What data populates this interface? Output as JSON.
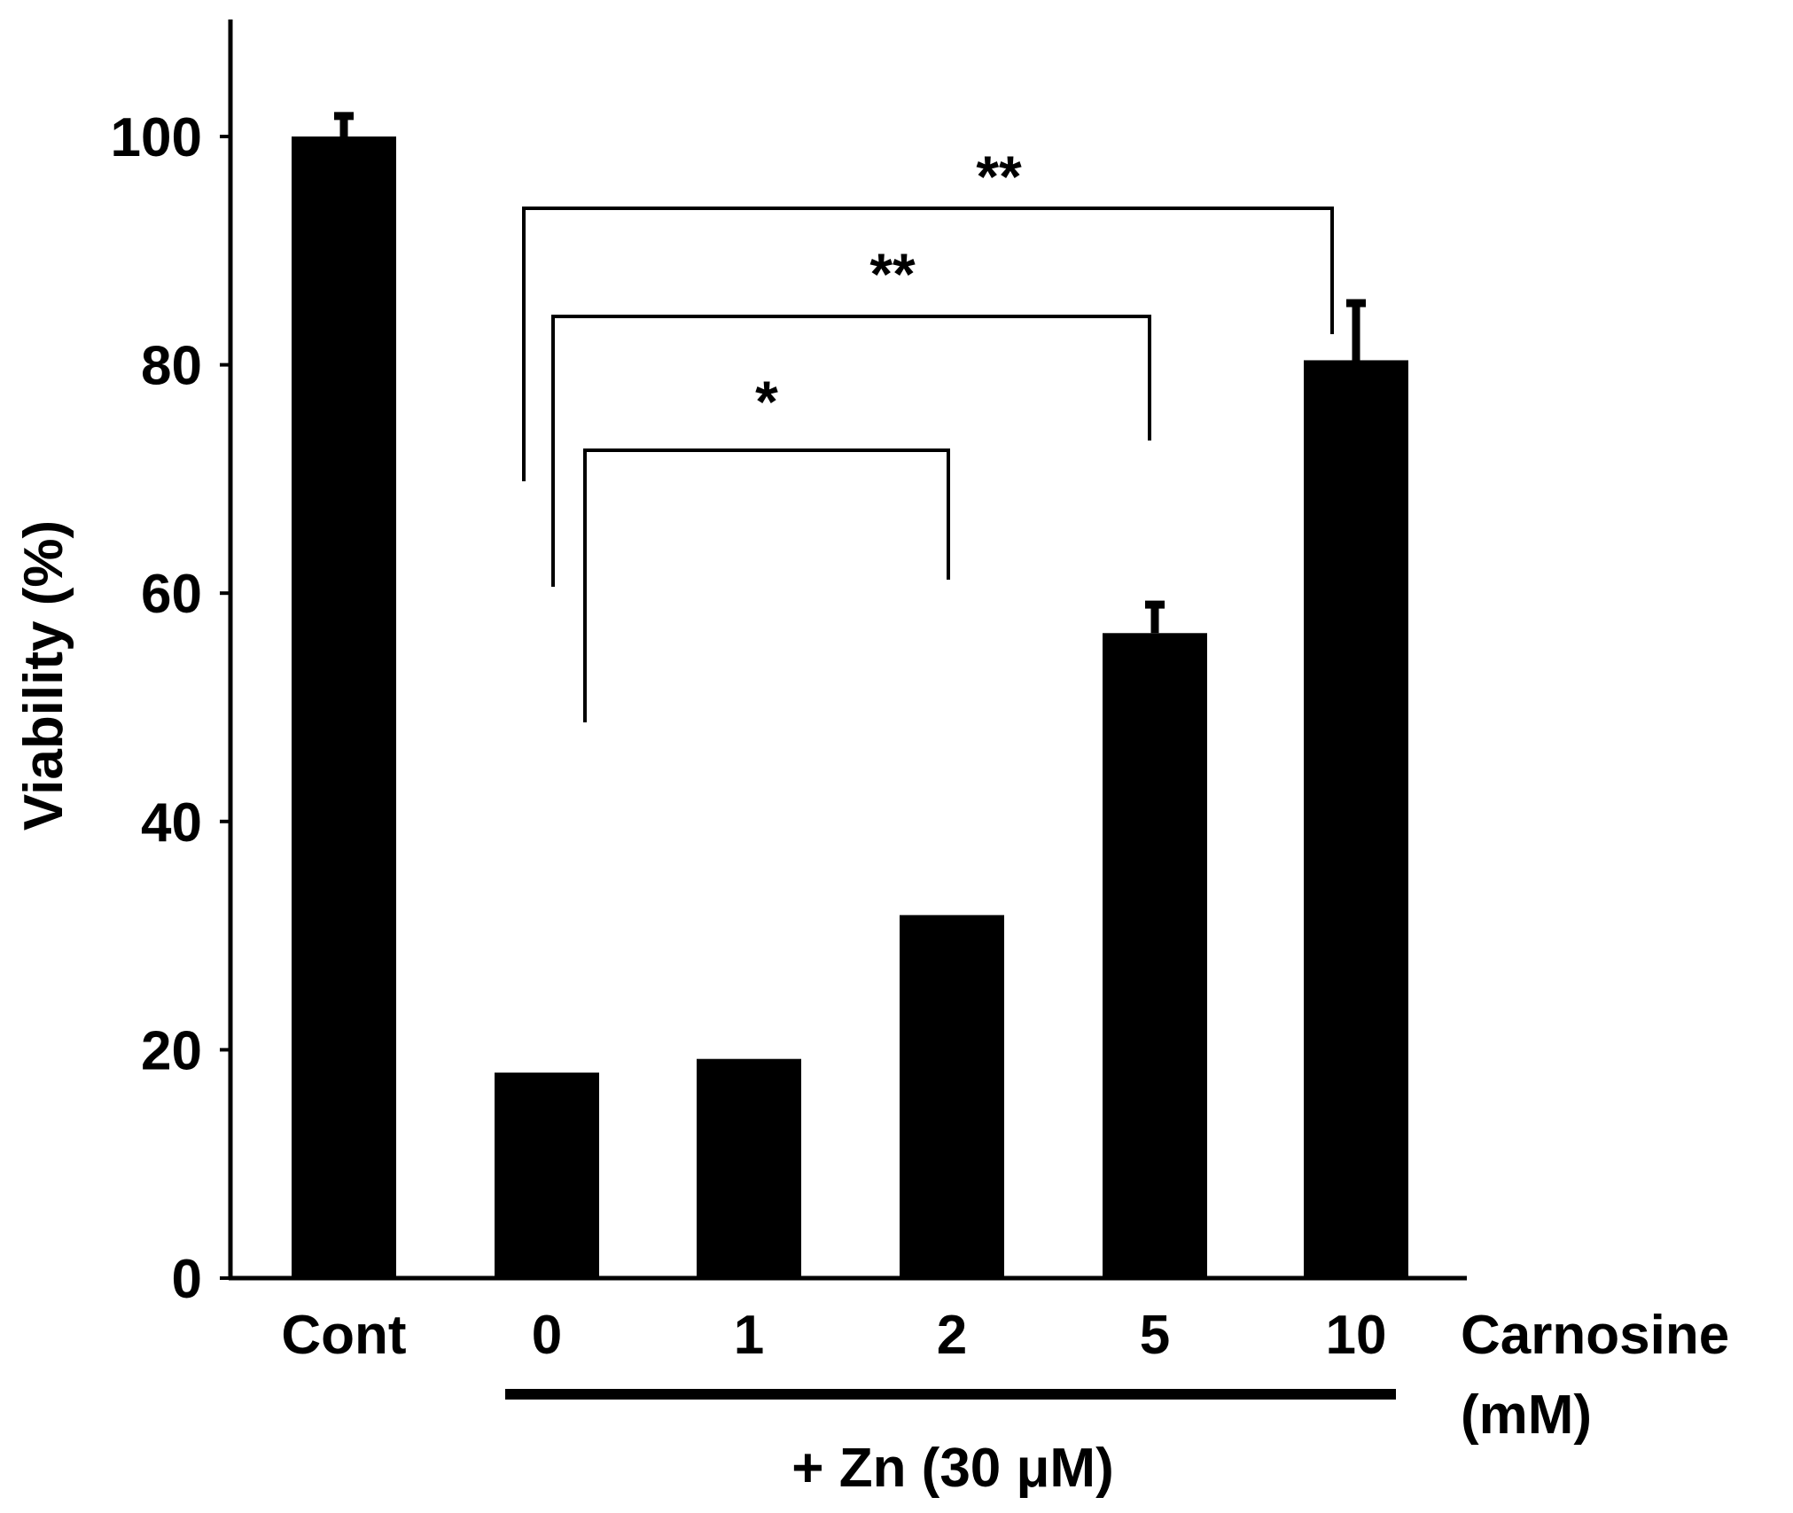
{
  "chart_data": {
    "type": "bar",
    "title": "",
    "ylabel": "Viability (%)",
    "ylim": [
      0,
      110
    ],
    "yticks": [
      "0",
      "20",
      "40",
      "60",
      "80",
      "100"
    ],
    "categories": [
      "Cont",
      "0",
      "1",
      "2",
      "5",
      "10"
    ],
    "values": [
      100,
      18,
      19.2,
      31.8,
      56.5,
      80.4
    ],
    "errors": [
      1.8,
      0,
      0,
      0,
      2.5,
      5.0
    ],
    "x_axis_annotation": [
      "Carnosine",
      "(mM)"
    ],
    "group_label": "+ Zn (30 μM)",
    "grid": false,
    "significance": [
      {
        "from": 1,
        "to": 3,
        "label": "*"
      },
      {
        "from": 1,
        "to": 4,
        "label": "**"
      },
      {
        "from": 1,
        "to": 5,
        "label": "**"
      }
    ],
    "colors": {
      "bars": "#000000",
      "axes": "#000000",
      "background": "#ffffff"
    }
  }
}
